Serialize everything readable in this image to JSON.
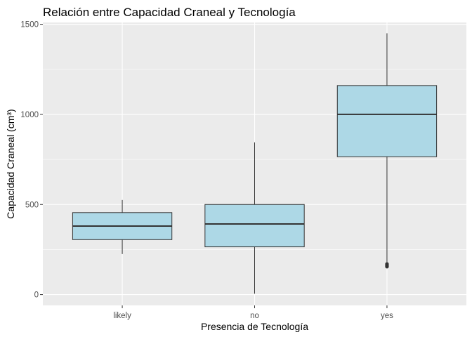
{
  "chart_data": {
    "type": "box",
    "title": "Relación entre Capacidad Craneal y Tecnología",
    "xlabel": "Presencia de Tecnología",
    "ylabel": "Capacidad Craneal (cm³)",
    "categories": [
      "likely",
      "no",
      "yes"
    ],
    "ylim": [
      -60,
      1510
    ],
    "yticks": [
      0,
      500,
      1000,
      1500
    ],
    "grid": true,
    "colors": {
      "panel": "#ebebeb",
      "grid": "#ffffff",
      "box_fill": "#add8e6",
      "box_stroke": "#333333"
    },
    "boxes": [
      {
        "category": "likely",
        "min": 225,
        "q1": 305,
        "median": 380,
        "q3": 455,
        "max": 525,
        "outliers": []
      },
      {
        "category": "no",
        "min": 5,
        "q1": 265,
        "median": 392,
        "q3": 500,
        "max": 845,
        "outliers": []
      },
      {
        "category": "yes",
        "min": 180,
        "q1": 765,
        "median": 1000,
        "q3": 1160,
        "max": 1450,
        "outliers": [
          155,
          160,
          165,
          170
        ]
      }
    ]
  }
}
